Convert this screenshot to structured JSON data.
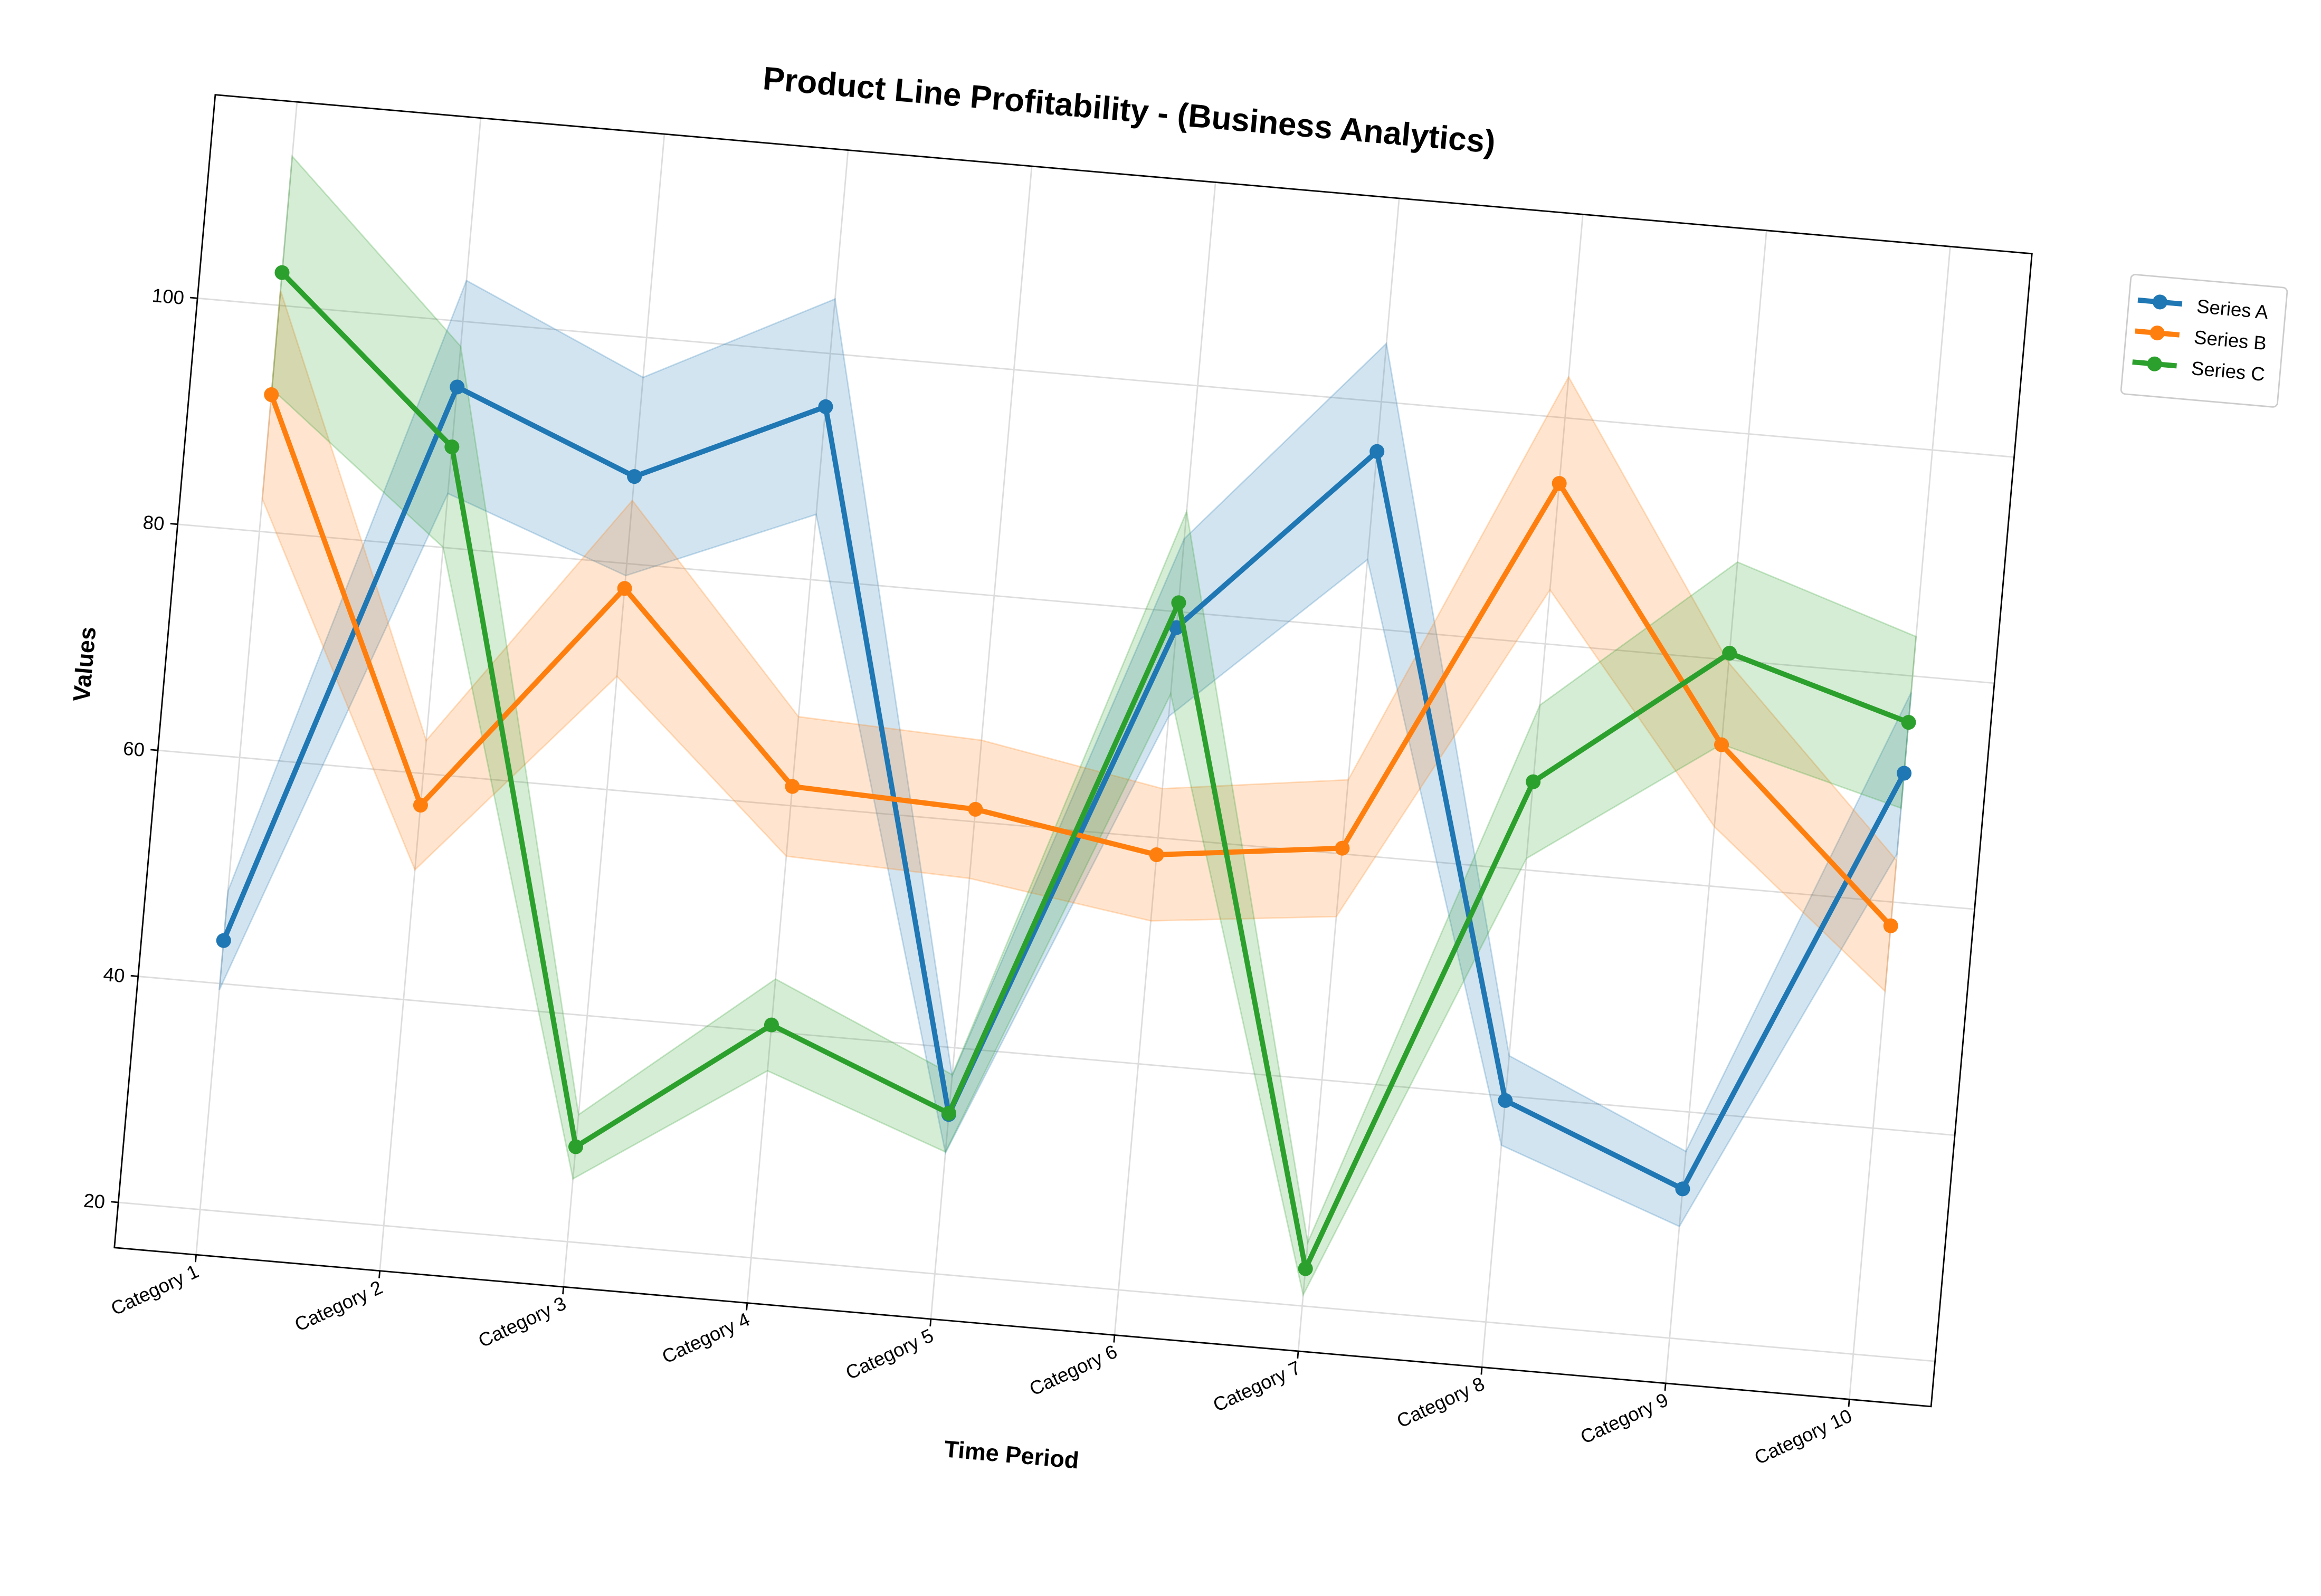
{
  "chart_data": {
    "type": "line",
    "title": "Product Line Profitability - (Business Analytics)",
    "x_label": "Time Period",
    "y_label": "Values",
    "categories": [
      "Category 1",
      "Category 2",
      "Category 3",
      "Category 4",
      "Category 5",
      "Category 6",
      "Category 7",
      "Category 8",
      "Category 9",
      "Category 10"
    ],
    "series": [
      {
        "name": "Series A",
        "color": "#1f77b4",
        "values": [
          43.8,
          94.2,
          87.7,
          95.3,
          34.1,
          78.6,
          95.6,
          39.6,
          33.2,
          71.4
        ]
      },
      {
        "name": "Series B",
        "color": "#ff7f0e",
        "values": [
          92.1,
          57.2,
          77.8,
          61.7,
          61.1,
          58.5,
          60.5,
          94.2,
          72.5,
          57.9
        ]
      },
      {
        "name": "Series C",
        "color": "#2ca02c",
        "values": [
          102.9,
          88.9,
          28.4,
          40.6,
          34.2,
          80.8,
          23.3,
          67.8,
          80.6,
          75.9
        ]
      }
    ],
    "ylim": [
      16,
      118
    ],
    "yticks": [
      20,
      40,
      60,
      80,
      100
    ],
    "grid": true,
    "legend": "outside upper right",
    "band_fraction": 0.1
  }
}
